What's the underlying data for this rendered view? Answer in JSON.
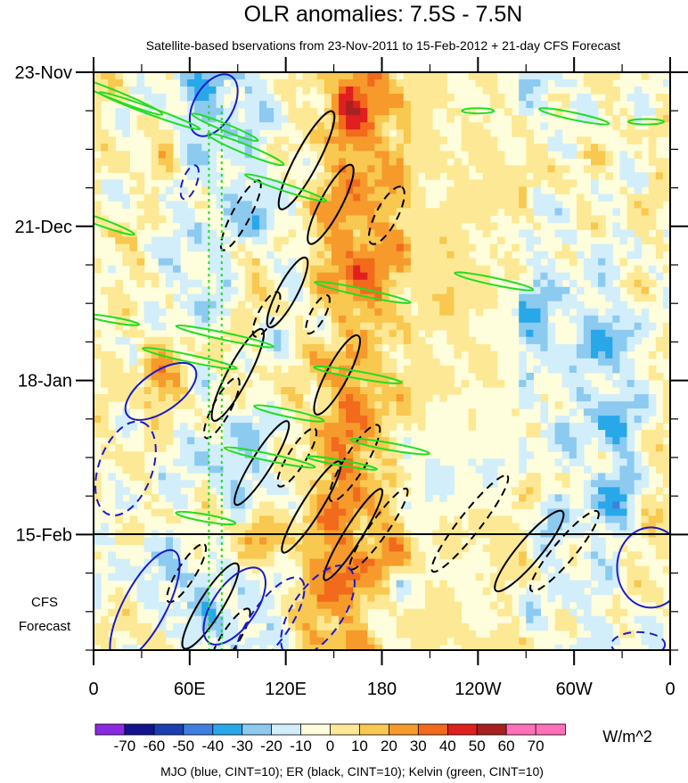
{
  "chart_data": {
    "type": "heatmap",
    "title": "OLR anomalies: 7.5S - 7.5N",
    "subtitle": "Satellite-based bservations from 23-Nov-2011 to 15-Feb-2012 + 21-day CFS Forecast",
    "x_ticks": [
      "0",
      "60E",
      "120E",
      "180",
      "120W",
      "60W",
      "0"
    ],
    "x_range": [
      0,
      360
    ],
    "y_ticks": [
      "23-Nov",
      "21-Dec",
      "18-Jan",
      "15-Feb"
    ],
    "y_tick_days": [
      0,
      28,
      56,
      84
    ],
    "y_range_days": [
      0,
      105
    ],
    "forecast_start_day": 84,
    "forecast_label_line1": "CFS",
    "forecast_label_line2": "Forecast",
    "colorbar": {
      "levels": [
        "-70",
        "-60",
        "-50",
        "-40",
        "-30",
        "-20",
        "-10",
        "0",
        "10",
        "20",
        "30",
        "40",
        "50",
        "60",
        "70"
      ],
      "colors": [
        "#8a2be2",
        "#13138f",
        "#1b3fb0",
        "#3f7fe0",
        "#28a8e8",
        "#8ccaf0",
        "#d2eefa",
        "#fefedc",
        "#fde995",
        "#f8c850",
        "#f69a2c",
        "#f26a1c",
        "#e01f1f",
        "#a82020",
        "#ff70b8",
        "#ff70b8"
      ],
      "units": "W/m^2"
    },
    "footer": "MJO (blue, CINT=10); ER (black, CINT=10); Kelvin (green, CINT=10)",
    "contour_colors": {
      "mjo": "#1a1acd",
      "er": "#000000",
      "kelvin": "#22dd22"
    }
  }
}
